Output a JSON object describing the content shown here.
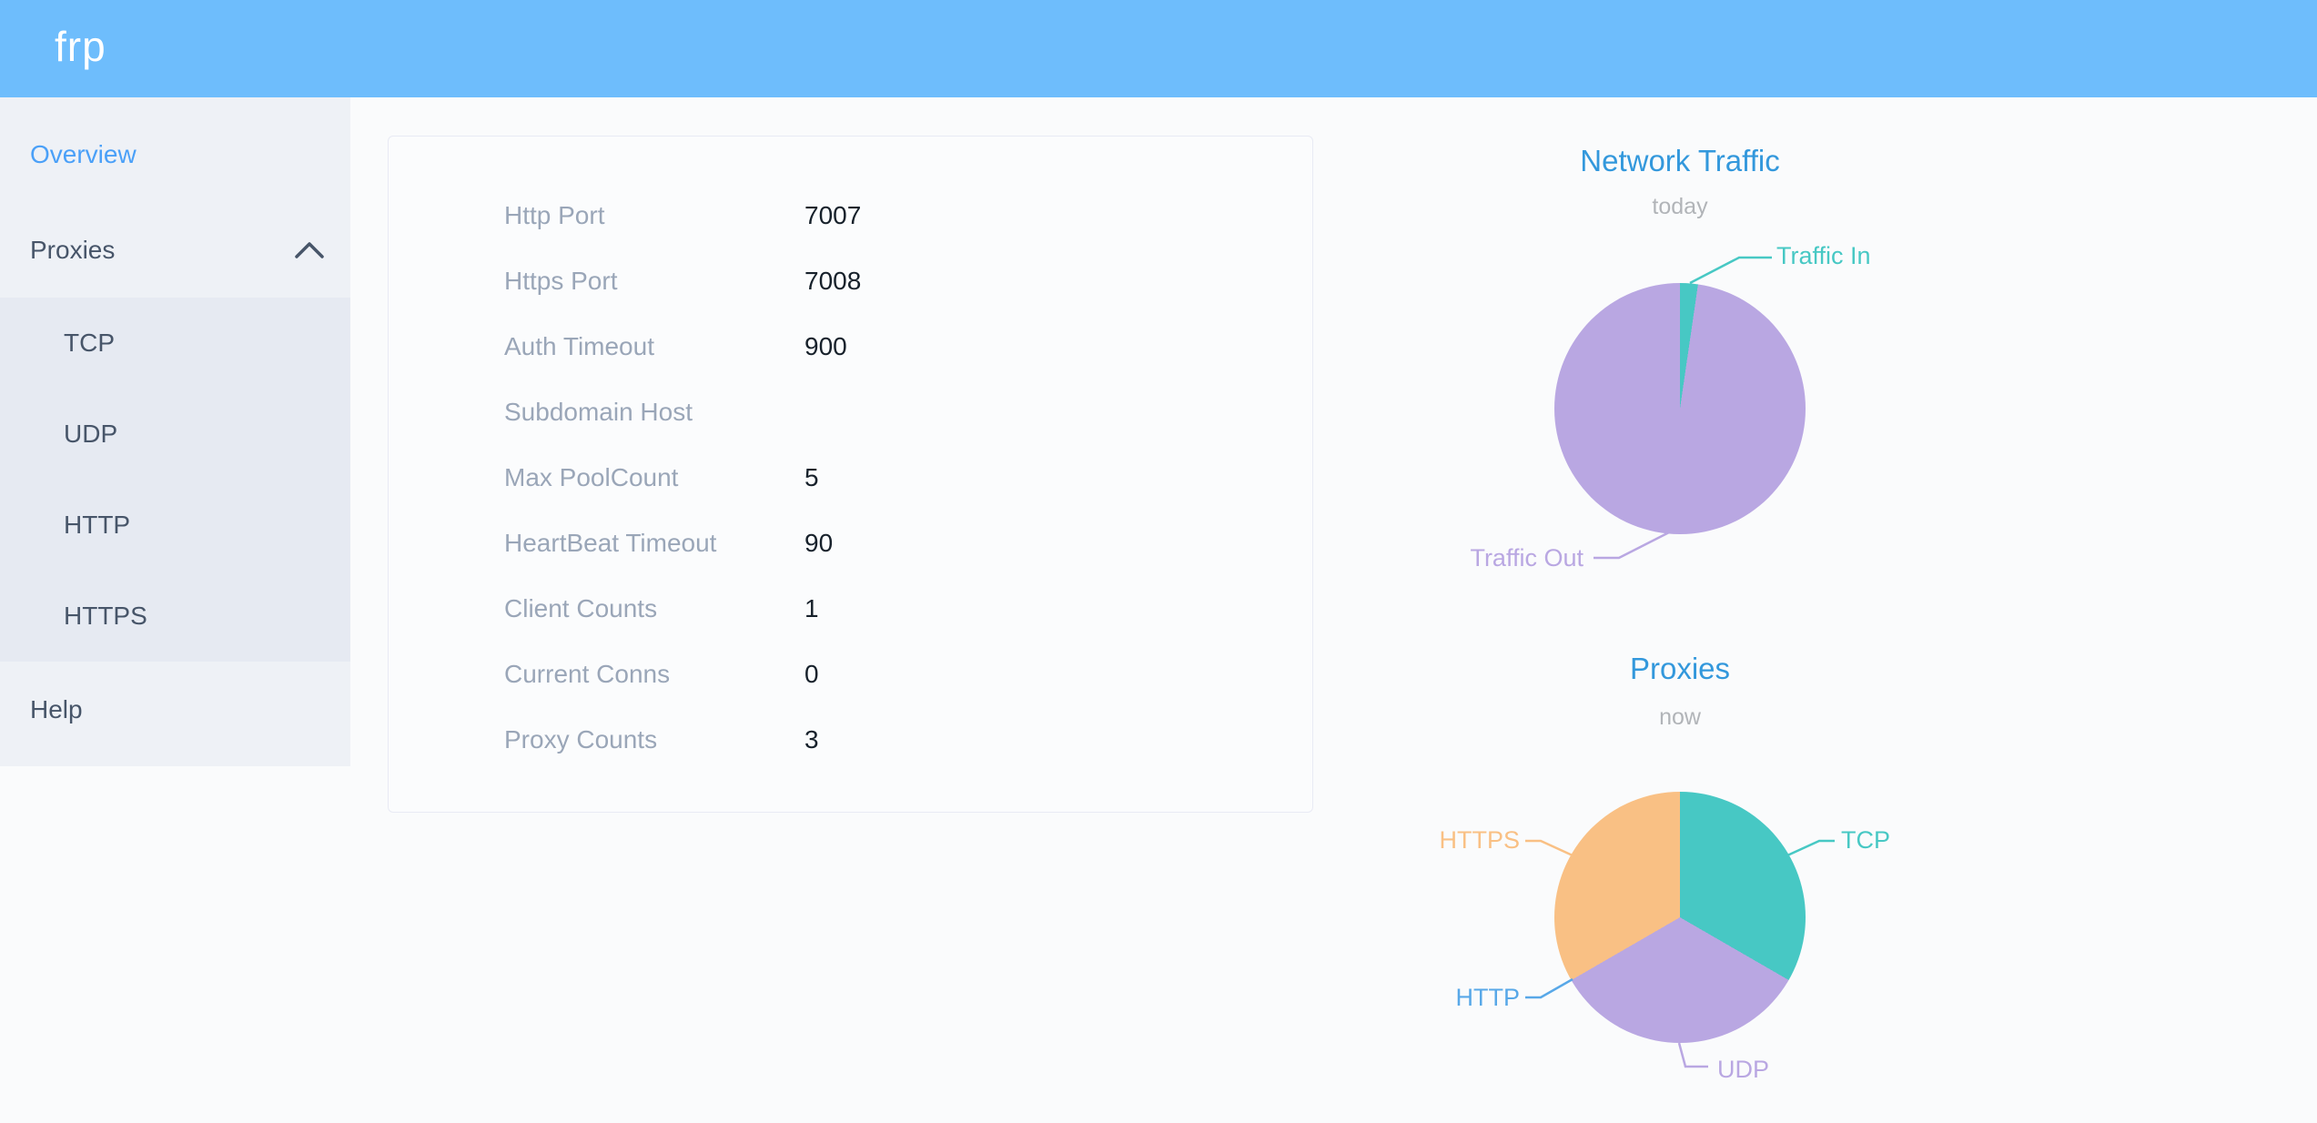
{
  "header": {
    "logo": "frp"
  },
  "palette": {
    "header_bg": "#6ebdfc",
    "sidebar_bg": "#eef1f6",
    "submenu_bg": "#e6eaf2",
    "sidebar_text": "#475569",
    "active_item_blue": "#4aa0f8",
    "chart_title_blue": "#3398dc",
    "subtitle_gray": "#b1b4b8",
    "config_label_gray": "#9aa6b8",
    "config_value_dark": "#17212b",
    "teal": "#47c8c4",
    "purple": "#b9a7e2",
    "orange": "#f9c084",
    "http_label_blue": "#58a8e8",
    "page_bg": "#fafbfc",
    "card_border": "#e8eaf4"
  },
  "sidebar": {
    "items": [
      {
        "label": "Overview",
        "active": true
      },
      {
        "label": "Proxies",
        "active": false
      }
    ],
    "sub_items": [
      "TCP",
      "UDP",
      "HTTP",
      "HTTPS"
    ],
    "help": "Help"
  },
  "overview_card": {
    "rows": [
      {
        "label": "Http Port",
        "value": "7007"
      },
      {
        "label": "Https Port",
        "value": "7008"
      },
      {
        "label": "Auth Timeout",
        "value": "900"
      },
      {
        "label": "Subdomain Host",
        "value": ""
      },
      {
        "label": "Max PoolCount",
        "value": "5"
      },
      {
        "label": "HeartBeat Timeout",
        "value": "90"
      },
      {
        "label": "Client Counts",
        "value": "1"
      },
      {
        "label": "Current Conns",
        "value": "0"
      },
      {
        "label": "Proxy Counts",
        "value": "3"
      }
    ]
  },
  "chart_data": [
    {
      "type": "pie",
      "title": "Network Traffic",
      "subtitle": "today",
      "legend_position": "callout-labels",
      "series": [
        {
          "name": "Traffic In",
          "percent": 2.3,
          "color": "#47c8c4"
        },
        {
          "name": "Traffic Out",
          "percent": 97.7,
          "color": "#b9a7e2"
        }
      ]
    },
    {
      "type": "pie",
      "title": "Proxies",
      "subtitle": "now",
      "legend_position": "callout-labels",
      "series": [
        {
          "name": "TCP",
          "value": 1,
          "percent": 33.33,
          "color": "#47c8c4"
        },
        {
          "name": "UDP",
          "value": 1,
          "percent": 33.33,
          "color": "#b9a7e2"
        },
        {
          "name": "HTTP",
          "value": 0,
          "percent": 0,
          "color": "#58a8e8"
        },
        {
          "name": "HTTPS",
          "value": 1,
          "percent": 33.34,
          "color": "#f9c084"
        }
      ]
    }
  ]
}
